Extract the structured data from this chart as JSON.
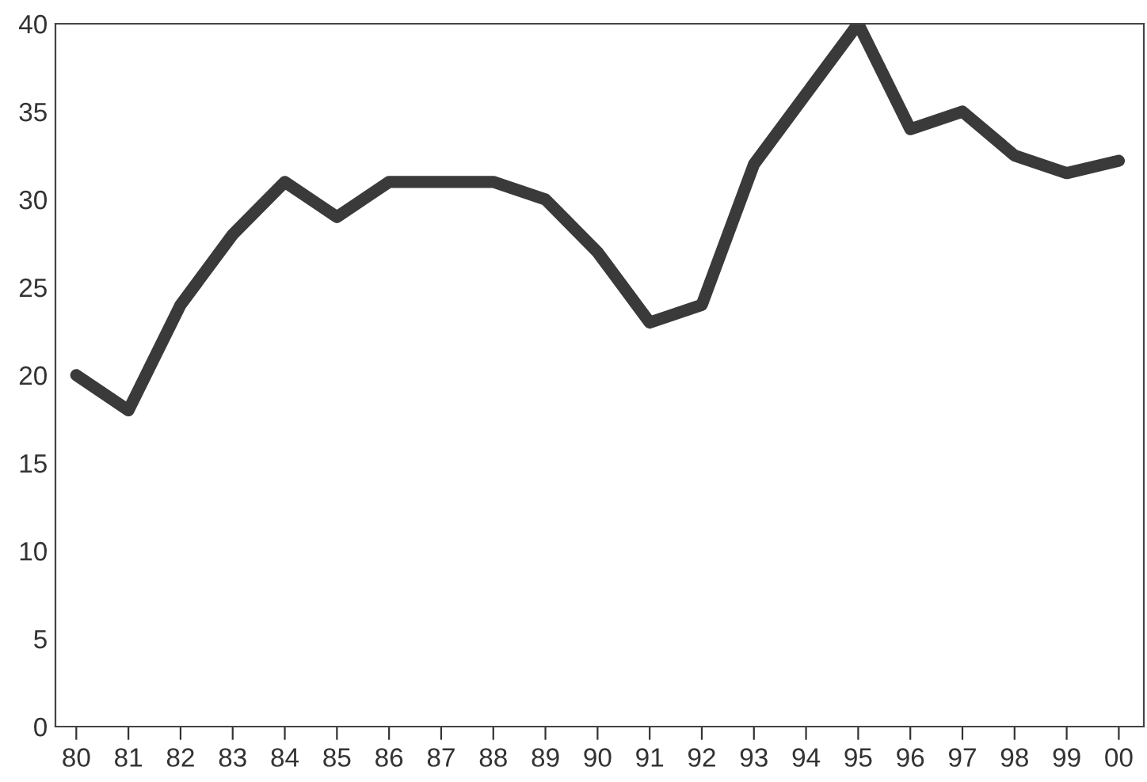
{
  "chart_data": {
    "type": "line",
    "categories": [
      "80",
      "81",
      "82",
      "83",
      "84",
      "85",
      "86",
      "87",
      "88",
      "89",
      "90",
      "91",
      "92",
      "93",
      "94",
      "95",
      "96",
      "97",
      "98",
      "99",
      "00"
    ],
    "series": [
      {
        "color": "#3a3a3a",
        "values": [
          20,
          18,
          24,
          28,
          31,
          29,
          31,
          31,
          31,
          30,
          27,
          23,
          24,
          32,
          36,
          40,
          34,
          35,
          32.5,
          31.5,
          32.2
        ]
      }
    ],
    "ylim": [
      0,
      40
    ],
    "yticks": [
      0,
      5,
      10,
      15,
      20,
      25,
      30,
      35,
      40
    ],
    "grid": false,
    "legend": false,
    "marker": "none",
    "line_style": "solid"
  }
}
